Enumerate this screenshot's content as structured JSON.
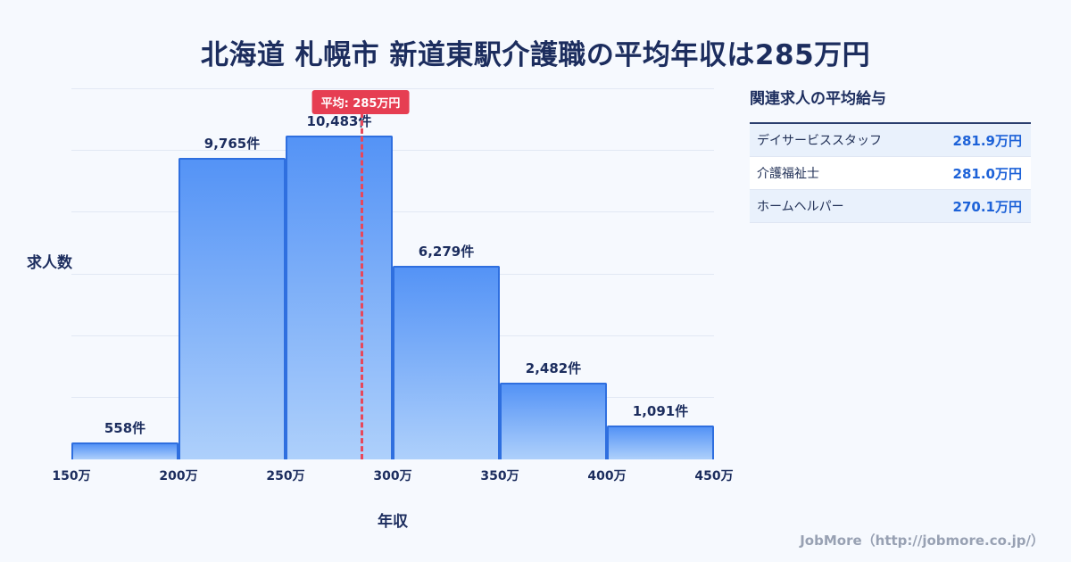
{
  "page": {
    "title": "北海道 札幌市 新道東駅介護職の平均年収は285万円",
    "footer": "JobMore（http://jobmore.co.jp/）"
  },
  "chart_data": {
    "type": "bar",
    "title": "北海道 札幌市 新道東駅介護職の平均年収は285万円",
    "xlabel": "年収",
    "ylabel": "求人数",
    "xrange": [
      150,
      450
    ],
    "ylim": [
      0,
      12000
    ],
    "grid": true,
    "grid_divisions": 6,
    "x_ticks": [
      "150万",
      "200万",
      "250万",
      "300万",
      "350万",
      "400万",
      "450万"
    ],
    "bins": [
      {
        "from": 150,
        "to": 200,
        "count": 558,
        "label": "558件"
      },
      {
        "from": 200,
        "to": 250,
        "count": 9765,
        "label": "9,765件"
      },
      {
        "from": 250,
        "to": 300,
        "count": 10483,
        "label": "10,483件"
      },
      {
        "from": 300,
        "to": 350,
        "count": 6279,
        "label": "6,279件"
      },
      {
        "from": 350,
        "to": 400,
        "count": 2482,
        "label": "2,482件"
      },
      {
        "from": 400,
        "to": 450,
        "count": 1091,
        "label": "1,091件"
      }
    ],
    "average_line": {
      "x": 285,
      "label": "平均: 285万円"
    }
  },
  "side_panel": {
    "heading": "関連求人の平均給与",
    "rows": [
      {
        "name": "デイサービススタッフ",
        "value": "281.9万円"
      },
      {
        "name": "介護福祉士",
        "value": "281.0万円"
      },
      {
        "name": "ホームヘルパー",
        "value": "270.1万円"
      }
    ]
  },
  "colors": {
    "background": "#f6f9fe",
    "title_navy": "#1c2d5e",
    "bar_fill_top": "#5493f6",
    "bar_fill_bottom": "#aed0fb",
    "bar_border": "#2f6fdf",
    "average_red": "#e63e52",
    "value_blue": "#1d62d8",
    "footer_gray": "#98a1b3"
  }
}
